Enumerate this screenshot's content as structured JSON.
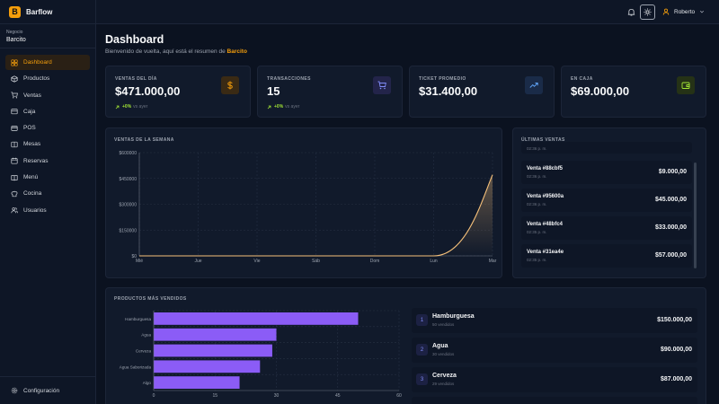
{
  "app": {
    "name": "Barflow",
    "logo_letter": "B"
  },
  "business": {
    "label": "Negocio",
    "name": "Barcito"
  },
  "nav": [
    {
      "label": "Dashboard",
      "icon": "home-icon",
      "active": true
    },
    {
      "label": "Productos",
      "icon": "box-icon"
    },
    {
      "label": "Ventas",
      "icon": "cart-icon"
    },
    {
      "label": "Caja",
      "icon": "cash-icon"
    },
    {
      "label": "POS",
      "icon": "card-icon"
    },
    {
      "label": "Mesas",
      "icon": "table-icon"
    },
    {
      "label": "Reservas",
      "icon": "calendar-icon"
    },
    {
      "label": "Menú",
      "icon": "book-icon"
    },
    {
      "label": "Cocina",
      "icon": "chef-icon"
    },
    {
      "label": "Usuarios",
      "icon": "users-icon"
    }
  ],
  "footer": {
    "label": "Configuración"
  },
  "header": {
    "user": "Roberto"
  },
  "page": {
    "title": "Dashboard",
    "subtitle": "Bienvenido de vuelta, aquí está el resumen de",
    "business": "Barcito"
  },
  "kpis": [
    {
      "label": "VENTAS DEL DÍA",
      "value": "$471.000,00",
      "change": "+0%",
      "compare": "vs ayer",
      "icon": "dollar-icon",
      "color": "#f59e0b"
    },
    {
      "label": "TRANSACCIONES",
      "value": "15",
      "change": "+0%",
      "compare": "vs ayer",
      "icon": "cart-icon",
      "color": "#818cf8"
    },
    {
      "label": "TICKET PROMEDIO",
      "value": "$31.400,00",
      "change": "",
      "compare": "",
      "icon": "trending-up-icon",
      "color": "#60a5fa"
    },
    {
      "label": "EN CAJA",
      "value": "$69.000,00",
      "change": "",
      "compare": "",
      "icon": "wallet-icon",
      "color": "#a3e635"
    }
  ],
  "weekly": {
    "title": "VENTAS DE LA SEMANA"
  },
  "recent": {
    "title": "ÚLTIMAS VENTAS",
    "partial_time": "02:36 p. m.",
    "items": [
      {
        "name": "Venta #88cbf5",
        "time": "02:36 p. m.",
        "amount": "$9.000,00"
      },
      {
        "name": "Venta #95600a",
        "time": "02:36 p. m.",
        "amount": "$45.000,00"
      },
      {
        "name": "Venta #48bfc4",
        "time": "02:35 p. m.",
        "amount": "$33.000,00"
      },
      {
        "name": "Venta #31ea4e",
        "time": "02:35 p. m.",
        "amount": "$57.000,00"
      }
    ]
  },
  "top_products": {
    "title": "PRODUCTOS MÁS VENDIDOS",
    "items": [
      {
        "rank": "1",
        "name": "Hamburguesa",
        "sold": "50 vendidos",
        "amount": "$150.000,00"
      },
      {
        "rank": "2",
        "name": "Agua",
        "sold": "30 vendidos",
        "amount": "$90.000,00"
      },
      {
        "rank": "3",
        "name": "Cerveza",
        "sold": "29 vendidos",
        "amount": "$87.000,00"
      }
    ]
  },
  "chart_data": [
    {
      "type": "area",
      "title": "VENTAS DE LA SEMANA",
      "x": [
        "Mié",
        "Jue",
        "Vie",
        "Sáb",
        "Dom",
        "Lun",
        "Mar"
      ],
      "y_ticks": [
        "$0",
        "$150000",
        "$300000",
        "$450000",
        "$600000"
      ],
      "ylim": [
        0,
        600000
      ],
      "values": [
        0,
        0,
        0,
        0,
        0,
        0,
        471000
      ],
      "color": "#f5c07a",
      "grid": true
    },
    {
      "type": "bar",
      "orientation": "horizontal",
      "title": "PRODUCTOS MÁS VENDIDOS",
      "categories": [
        "Hamburguesa",
        "Agua",
        "Cerveza",
        "Agua Saborizada",
        "Algo"
      ],
      "values": [
        50,
        30,
        29,
        26,
        21
      ],
      "x_ticks": [
        "0",
        "15",
        "30",
        "45",
        "60"
      ],
      "xlim": [
        0,
        60
      ],
      "color": "#8b5cf6",
      "grid": true
    }
  ]
}
